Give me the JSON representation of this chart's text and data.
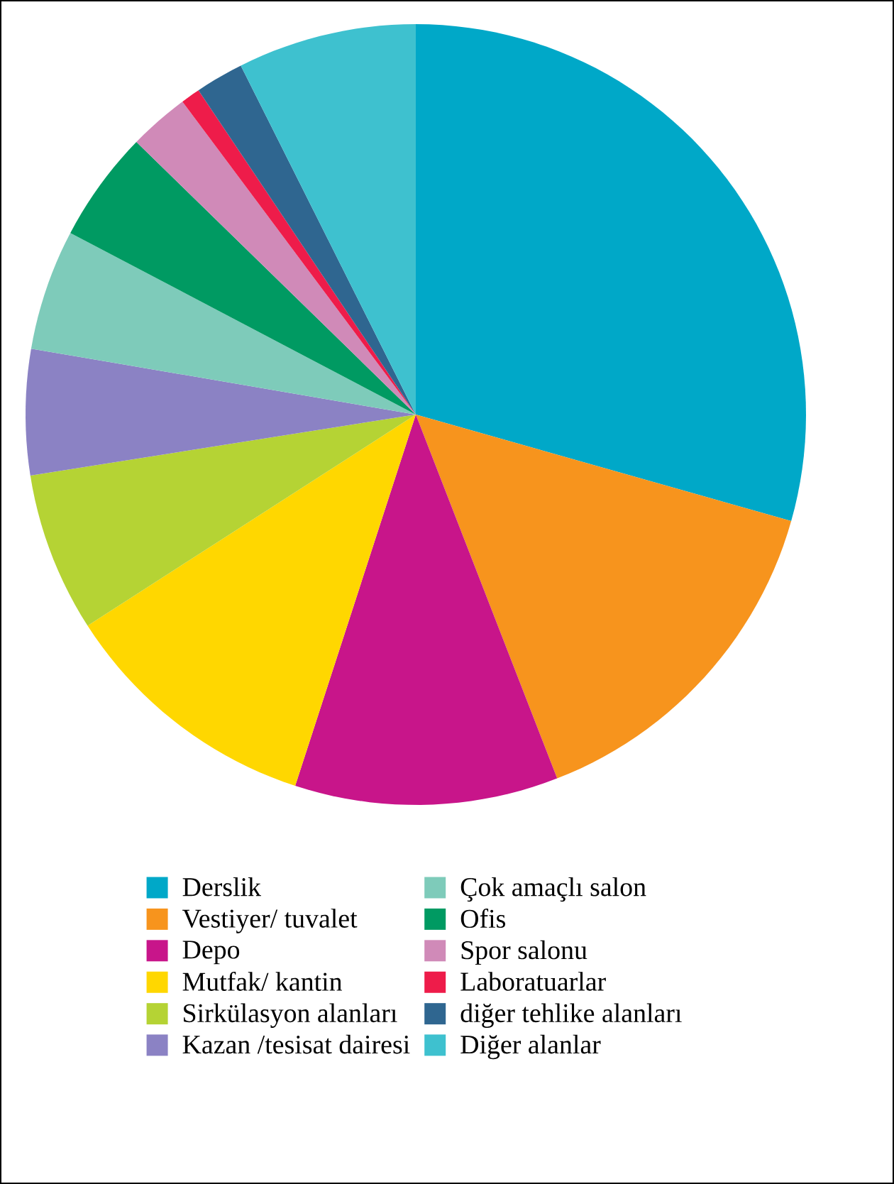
{
  "chart_data": {
    "type": "pie",
    "categories": [
      "Derslik",
      "Vestiyer/ tuvalet",
      "Depo",
      "Mutfak/ kantin",
      "Sirkülasyon alanları",
      "Kazan /tesisat dairesi",
      "Çok amaçlı salon",
      "Ofis",
      "Spor salonu",
      "Laboratuarlar",
      "diğer tehlike alanları",
      "Diğer alanlar"
    ],
    "values": [
      29.4,
      14.7,
      10.9,
      10.9,
      6.6,
      5.2,
      5.0,
      4.6,
      2.5,
      0.8,
      2.0,
      7.4
    ],
    "colors": [
      "#00a8c8",
      "#f7941d",
      "#c8158a",
      "#ffd700",
      "#b5d334",
      "#8b82c4",
      "#7ecbba",
      "#009a62",
      "#d08ab8",
      "#ee1c4a",
      "#2f6690",
      "#3ec1cf"
    ],
    "legend": "bottom"
  }
}
